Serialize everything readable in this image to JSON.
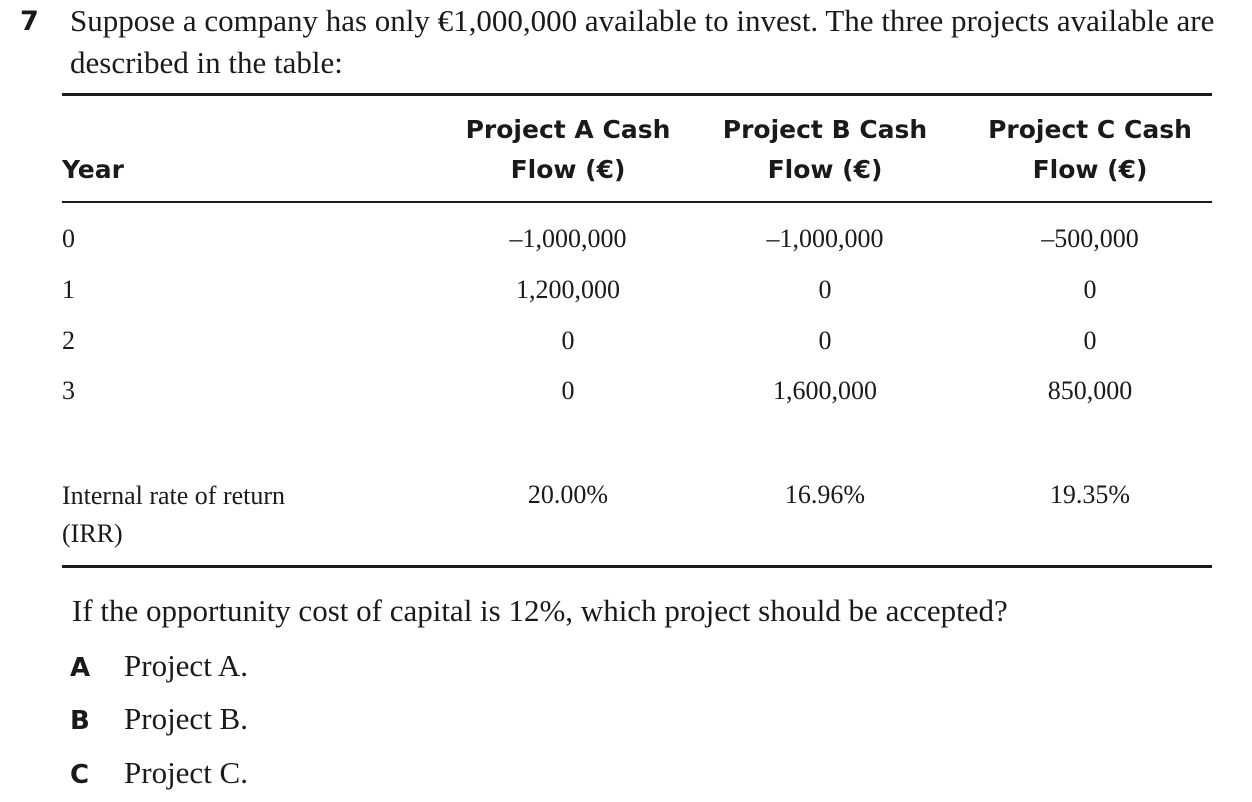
{
  "question": {
    "number": "7",
    "text": "Suppose a company has only €1,000,000 available to invest. The three projects available are described in the table:"
  },
  "table": {
    "year_header": "Year",
    "col_headers": [
      {
        "line1": "Project A Cash",
        "line2": "Flow (€)"
      },
      {
        "line1": "Project B Cash",
        "line2": "Flow (€)"
      },
      {
        "line1": "Project C Cash",
        "line2": "Flow (€)"
      }
    ],
    "rows": [
      {
        "year": "0",
        "a": "–1,000,000",
        "b": "–1,000,000",
        "c": "–500,000"
      },
      {
        "year": "1",
        "a": "1,200,000",
        "b": "0",
        "c": "0"
      },
      {
        "year": "2",
        "a": "0",
        "b": "0",
        "c": "0"
      },
      {
        "year": "3",
        "a": "0",
        "b": "1,600,000",
        "c": "850,000"
      }
    ],
    "irr": {
      "label_line1": "Internal rate of return",
      "label_line2": "(IRR)",
      "a": "20.00%",
      "b": "16.96%",
      "c": "19.35%"
    }
  },
  "prompt": "If the opportunity cost of capital is 12%, which project should be accepted?",
  "options": [
    {
      "letter": "A",
      "text": "Project A."
    },
    {
      "letter": "B",
      "text": "Project B."
    },
    {
      "letter": "C",
      "text": "Project C."
    }
  ]
}
